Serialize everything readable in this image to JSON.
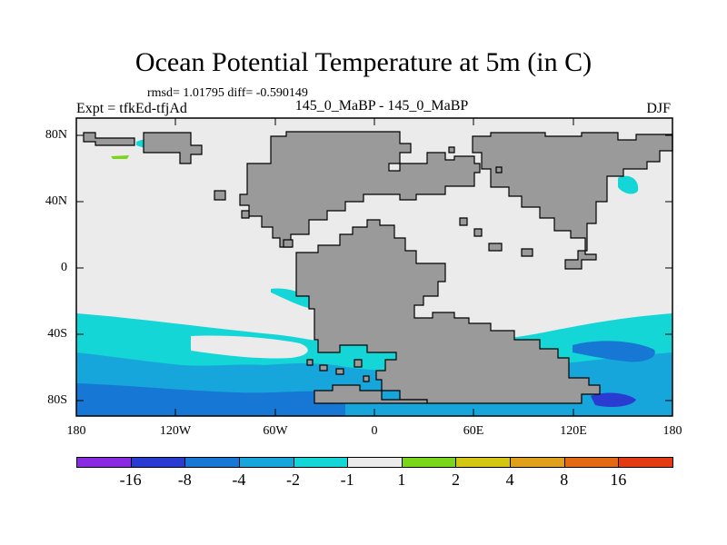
{
  "plot": {
    "title": "Ocean Potential Temperature at 5m (in C)",
    "stats": "rmsd= 1.01795 diff= -0.590149",
    "left_label": "Expt = tfkEd-tfjAd",
    "center_label": "145_0_MaBP - 145_0_MaBP",
    "right_label": "DJF"
  },
  "axes": {
    "y_ticks": [
      "80N",
      "40N",
      "0",
      "40S",
      "80S"
    ],
    "x_ticks": [
      "180",
      "120W",
      "60W",
      "0",
      "60E",
      "120E",
      "180"
    ]
  },
  "colorbar": {
    "labels": [
      "-16",
      "-8",
      "-4",
      "-2",
      "-1",
      "1",
      "2",
      "4",
      "8",
      "16"
    ],
    "colors": [
      "#8a2be2",
      "#2a3bd1",
      "#1677d4",
      "#17a6db",
      "#14d6d6",
      "#ebebeb",
      "#7ad61b",
      "#d4c714",
      "#e0a01b",
      "#e36a12",
      "#e33a12"
    ]
  },
  "colors": {
    "land": "#9a9a9a",
    "ocean_neutral": "#ebebeb",
    "cyan": "#14d6d6",
    "light_blue": "#17a6db",
    "blue": "#1677d4",
    "dark_blue": "#2a3bd1",
    "green": "#7ad61b"
  }
}
